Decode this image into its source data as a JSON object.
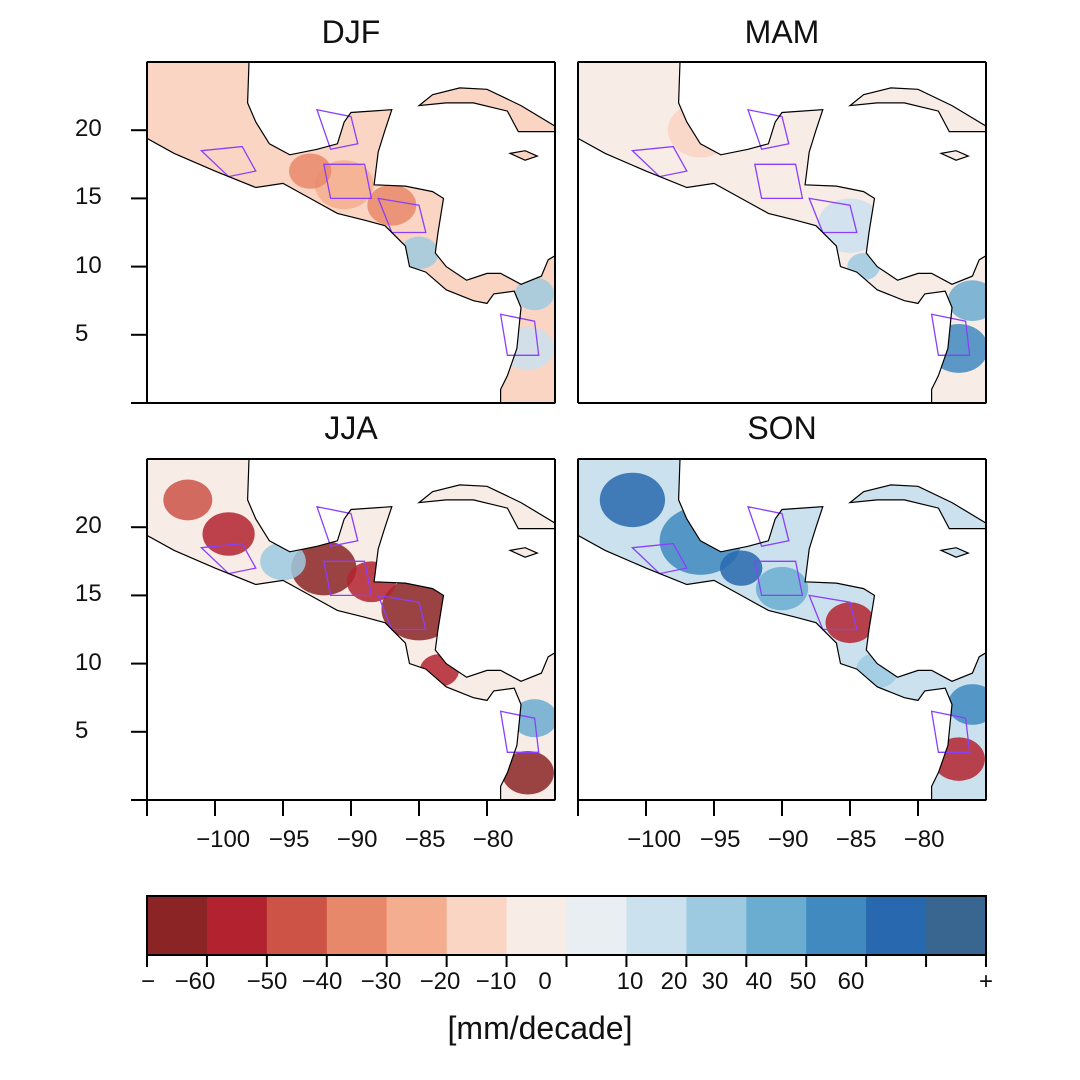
{
  "figure": {
    "panels": [
      {
        "title": "DJF"
      },
      {
        "title": "MAM"
      },
      {
        "title": "JJA"
      },
      {
        "title": "SON"
      }
    ],
    "lat_ticks": [
      "20",
      "15",
      "10",
      "5"
    ],
    "lon_ticks": [
      "−100",
      "−95",
      "−90",
      "−85",
      "−80"
    ],
    "lat_range": [
      0,
      25
    ],
    "lon_range": [
      -105,
      -75
    ],
    "overlay_colors": {
      "coastline": "#000000",
      "region_outline": "#8a3ffc",
      "stippling": "#333333"
    }
  },
  "colorbar": {
    "labels": [
      "−",
      "−60",
      "−50",
      "−40",
      "−30",
      "−20",
      "−10",
      "0",
      "10",
      "20",
      "30",
      "40",
      "50",
      "60",
      "+"
    ],
    "colors": [
      "#8b2424",
      "#b3232f",
      "#cd5347",
      "#e8886b",
      "#f4ae8f",
      "#fad5c3",
      "#f8ece7",
      "#e9eef3",
      "#cbe1ee",
      "#9ecae1",
      "#6badd0",
      "#408ac0",
      "#2868ae",
      "#386690"
    ],
    "units": "[mm/decade]"
  }
}
